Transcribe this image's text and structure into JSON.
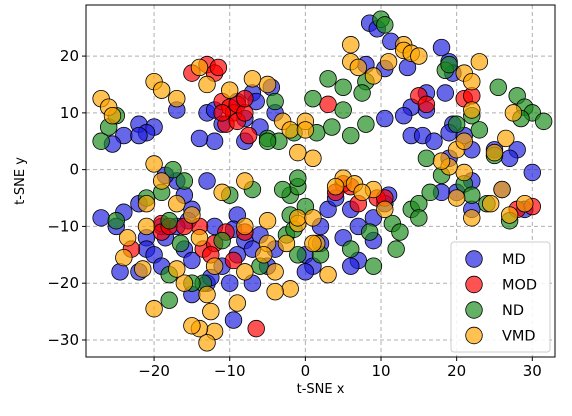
{
  "chart_data": {
    "type": "scatter",
    "xlabel": "t-SNE x",
    "ylabel": "t-SNE y",
    "xlim": [
      -29,
      33
    ],
    "ylim": [
      -33,
      29
    ],
    "xticks": [
      -20,
      -10,
      0,
      10,
      20,
      30
    ],
    "yticks": [
      -30,
      -20,
      -10,
      0,
      10,
      20
    ],
    "x_tick_labels": [
      "−20",
      "−10",
      "0",
      "10",
      "20",
      "30"
    ],
    "y_tick_labels": [
      "−30",
      "−20",
      "−10",
      "0",
      "10",
      "20"
    ],
    "grid": true,
    "legend_position": "lower-right",
    "series": [
      {
        "name": "MD",
        "color": "#1f1fe0",
        "points": [
          [
            8.5,
            25.8
          ],
          [
            9.5,
            24.8
          ],
          [
            11.3,
            22.6
          ],
          [
            8,
            18.5
          ],
          [
            10.5,
            17.8
          ],
          [
            13.5,
            18
          ],
          [
            18,
            21.5
          ],
          [
            19,
            19
          ],
          [
            19.5,
            17
          ],
          [
            16,
            13.5
          ],
          [
            18.5,
            13.5
          ],
          [
            16,
            10.5
          ],
          [
            14,
            11
          ],
          [
            13,
            9.5
          ],
          [
            10.5,
            9
          ],
          [
            14,
            6
          ],
          [
            15.5,
            6
          ],
          [
            17,
            5
          ],
          [
            19.5,
            8
          ],
          [
            19,
            6.5
          ],
          [
            21,
            6
          ],
          [
            22,
            3.5
          ],
          [
            19,
            2
          ],
          [
            22,
            -2
          ],
          [
            20,
            -4
          ],
          [
            18,
            -4
          ],
          [
            22,
            -7
          ],
          [
            26,
            -3.5
          ],
          [
            29,
            -7
          ],
          [
            30,
            -0.5
          ],
          [
            28,
            3.5
          ],
          [
            27,
            2
          ],
          [
            -22,
            8
          ],
          [
            -20,
            7.5
          ],
          [
            -24,
            6
          ],
          [
            -25.5,
            4.5
          ],
          [
            -21,
            6.5
          ],
          [
            -22,
            6
          ],
          [
            -17,
            10.5
          ],
          [
            -13,
            10
          ],
          [
            -12,
            10.5
          ],
          [
            -11,
            8
          ],
          [
            -8,
            9
          ],
          [
            -6,
            7.5
          ],
          [
            -8,
            5
          ],
          [
            -9,
            12
          ],
          [
            -12,
            5
          ],
          [
            -14,
            5.5
          ],
          [
            -7,
            13.5
          ],
          [
            -4.5,
            14.5
          ],
          [
            -4,
            10
          ],
          [
            -6.5,
            12
          ],
          [
            -4,
            -14
          ],
          [
            -22,
            -6
          ],
          [
            -24,
            -7.5
          ],
          [
            -25,
            -10
          ],
          [
            -27,
            -8.5
          ],
          [
            -21,
            -12
          ],
          [
            -21,
            -14
          ],
          [
            -20,
            -15
          ],
          [
            -18.5,
            -12
          ],
          [
            -16,
            -14
          ],
          [
            -15,
            -16
          ],
          [
            -13,
            -20
          ],
          [
            -15,
            -22
          ],
          [
            -19,
            -17
          ],
          [
            -22,
            -18
          ],
          [
            -24.5,
            -18
          ],
          [
            -9,
            -8
          ],
          [
            -12,
            -10
          ],
          [
            -9.5,
            -10.5
          ],
          [
            -8,
            -12.5
          ],
          [
            -6,
            -11.5
          ],
          [
            -7,
            -14
          ],
          [
            -9,
            -15
          ],
          [
            -11,
            -17
          ],
          [
            -12.5,
            -19
          ],
          [
            -10,
            -20
          ],
          [
            -7,
            -20
          ],
          [
            -5,
            -17
          ],
          [
            -15,
            -7
          ],
          [
            -15.5,
            -9
          ],
          [
            -17,
            -10
          ],
          [
            -16,
            -4.5
          ],
          [
            -13,
            -2
          ],
          [
            -17,
            -2
          ],
          [
            -18.5,
            -1
          ],
          [
            0,
            -15
          ],
          [
            1,
            -17
          ],
          [
            0,
            -18
          ],
          [
            2,
            -13
          ],
          [
            2,
            -10
          ],
          [
            3,
            -7
          ],
          [
            4,
            -5
          ],
          [
            6,
            -7
          ],
          [
            7,
            -10
          ],
          [
            5,
            -12
          ],
          [
            7,
            -16
          ],
          [
            6,
            -17
          ],
          [
            9,
            -8.5
          ],
          [
            9,
            -12.5
          ],
          [
            11,
            -4.5
          ],
          [
            10.5,
            -6
          ],
          [
            -9.5,
            -26.5
          ],
          [
            -19,
            -10
          ],
          [
            25,
            3.5
          ]
        ]
      },
      {
        "name": "MOD",
        "color": "#ff0000",
        "points": [
          [
            -13,
            18.5
          ],
          [
            -12,
            17
          ],
          [
            -11.5,
            18
          ],
          [
            -15,
            17
          ],
          [
            -11,
            12
          ],
          [
            -10,
            11
          ],
          [
            -9.5,
            10
          ],
          [
            -9,
            11.5
          ],
          [
            -10.5,
            8
          ],
          [
            -9,
            8.5
          ],
          [
            -8,
            10
          ],
          [
            -11,
            10
          ],
          [
            -7.5,
            6
          ],
          [
            -8,
            12.5
          ],
          [
            -19,
            -9.5
          ],
          [
            -19,
            -11
          ],
          [
            -18,
            -10
          ],
          [
            -14,
            -10
          ],
          [
            -13.5,
            -14
          ],
          [
            -12,
            -13
          ],
          [
            -12.5,
            -15
          ],
          [
            -9.5,
            -16
          ],
          [
            -8,
            -11
          ],
          [
            -6.5,
            -28
          ],
          [
            3,
            11.5
          ],
          [
            5,
            -2.5
          ],
          [
            4,
            -4
          ],
          [
            6,
            -3
          ],
          [
            7,
            -6
          ],
          [
            9.5,
            -5
          ],
          [
            10.5,
            -5
          ],
          [
            15,
            13
          ],
          [
            16,
            11.5
          ],
          [
            21,
            12.5
          ],
          [
            22,
            13
          ],
          [
            28,
            -7
          ],
          [
            30,
            -6.5
          ],
          [
            -23,
            -14
          ],
          [
            -16,
            -10
          ],
          [
            -10.5,
            -11
          ]
        ]
      },
      {
        "name": "ND",
        "color": "#1a8a1a",
        "points": [
          [
            10,
            26.5
          ],
          [
            10.5,
            25.5
          ],
          [
            5,
            14.5
          ],
          [
            3,
            16
          ],
          [
            1,
            12.5
          ],
          [
            -4,
            12
          ],
          [
            -5,
            5.5
          ],
          [
            -3.5,
            5
          ],
          [
            -1.5,
            6.5
          ],
          [
            1.5,
            6.5
          ],
          [
            3.5,
            7.5
          ],
          [
            6,
            6
          ],
          [
            8,
            8
          ],
          [
            5,
            10.5
          ],
          [
            8,
            15.5
          ],
          [
            7.5,
            13.5
          ],
          [
            11.5,
            -9.5
          ],
          [
            12.5,
            -11
          ],
          [
            14,
            -7
          ],
          [
            15,
            -6
          ],
          [
            16.5,
            -4
          ],
          [
            18,
            -1
          ],
          [
            16,
            2
          ],
          [
            15,
            -8.5
          ],
          [
            12,
            -14
          ],
          [
            9,
            -17
          ],
          [
            8.5,
            -11
          ],
          [
            6,
            -14
          ],
          [
            2,
            -15
          ],
          [
            -1,
            -15
          ],
          [
            0,
            -6.5
          ],
          [
            -2,
            -8
          ],
          [
            -2,
            -4.5
          ],
          [
            -1,
            -3
          ],
          [
            -1,
            -1.5
          ],
          [
            -7,
            -3.5
          ],
          [
            -2.5,
            -11.5
          ],
          [
            -6,
            -17
          ],
          [
            -16.5,
            -13
          ],
          [
            -18,
            -18.5
          ],
          [
            -18,
            -23
          ],
          [
            -13.5,
            -20
          ],
          [
            -11,
            -12.5
          ],
          [
            -15,
            -20
          ],
          [
            -16,
            -2
          ],
          [
            -17.5,
            0
          ],
          [
            -19,
            -4
          ],
          [
            -21,
            -5
          ],
          [
            -25,
            -9
          ],
          [
            -27,
            5
          ],
          [
            -26,
            7.5
          ],
          [
            -25,
            9.5
          ],
          [
            -5,
            5
          ],
          [
            -10,
            -4.5
          ],
          [
            -3,
            -3.5
          ],
          [
            18.5,
            17.5
          ],
          [
            19,
            18.5
          ],
          [
            20,
            8
          ],
          [
            22,
            9.5
          ],
          [
            23,
            7
          ],
          [
            21,
            -2.5
          ],
          [
            22,
            -4.5
          ],
          [
            24,
            -6
          ],
          [
            27,
            -9
          ],
          [
            25.5,
            14.5
          ],
          [
            28,
            13
          ],
          [
            29,
            11
          ],
          [
            30,
            10
          ],
          [
            31.5,
            8.5
          ],
          [
            28.5,
            9
          ],
          [
            25,
            2.5
          ],
          [
            -1.5,
            -10.5
          ],
          [
            -18,
            -9
          ]
        ]
      },
      {
        "name": "VMD",
        "color": "#ffa500",
        "points": [
          [
            -27,
            12.5
          ],
          [
            -26,
            11
          ],
          [
            -25.5,
            9.5
          ],
          [
            -20,
            15.5
          ],
          [
            -19,
            14
          ],
          [
            -17,
            12.5
          ],
          [
            -14,
            18
          ],
          [
            -13,
            15
          ],
          [
            -10,
            14
          ],
          [
            -5,
            15
          ],
          [
            -7,
            16
          ],
          [
            -3,
            8.5
          ],
          [
            -2,
            7
          ],
          [
            0,
            8.5
          ],
          [
            0,
            7
          ],
          [
            6,
            22
          ],
          [
            6,
            19
          ],
          [
            7,
            18
          ],
          [
            9,
            16.5
          ],
          [
            11,
            19
          ],
          [
            13,
            22
          ],
          [
            13,
            21
          ],
          [
            14,
            20.5
          ],
          [
            15,
            20
          ],
          [
            21,
            17
          ],
          [
            22,
            15.5
          ],
          [
            23,
            19
          ],
          [
            22,
            10.5
          ],
          [
            27.5,
            10
          ],
          [
            26.5,
            5.5
          ],
          [
            25,
            3
          ],
          [
            21,
            -0.5
          ],
          [
            19,
            0.5
          ],
          [
            18,
            1.5
          ],
          [
            20,
            3.5
          ],
          [
            21,
            5
          ],
          [
            20,
            -5
          ],
          [
            22,
            -8.5
          ],
          [
            24.5,
            -6
          ],
          [
            26,
            -3.5
          ],
          [
            27,
            -8
          ],
          [
            29,
            -6
          ],
          [
            5,
            -1.5
          ],
          [
            4,
            -3
          ],
          [
            6.5,
            -2.5
          ],
          [
            9,
            -3.5
          ],
          [
            10.5,
            -7
          ],
          [
            7.5,
            -4
          ],
          [
            3,
            -18.5
          ],
          [
            1.5,
            -13
          ],
          [
            -1,
            -9.5
          ],
          [
            -1,
            -8.5
          ],
          [
            1,
            -8.5
          ],
          [
            -2,
            -21
          ],
          [
            -4,
            -21.5
          ],
          [
            -2.5,
            -13
          ],
          [
            -5,
            -9
          ],
          [
            -5,
            -13
          ],
          [
            -4,
            -18
          ],
          [
            -5.5,
            -15
          ],
          [
            -8,
            -10
          ],
          [
            -8,
            -18
          ],
          [
            -9,
            -23.5
          ],
          [
            -13,
            -22
          ],
          [
            -12,
            -28.5
          ],
          [
            -14,
            -28
          ],
          [
            -15,
            -27.5
          ],
          [
            -16,
            -20
          ],
          [
            -17,
            -17.5
          ],
          [
            -14,
            -12
          ],
          [
            -12,
            -17
          ],
          [
            -21,
            -6
          ],
          [
            -21,
            -10
          ],
          [
            -20,
            -24.5
          ],
          [
            -21.5,
            -17.5
          ],
          [
            -24,
            -15.5
          ],
          [
            -23.5,
            -12
          ],
          [
            -20,
            1
          ],
          [
            -19,
            -2
          ],
          [
            -17,
            -6
          ],
          [
            -15,
            -8
          ],
          [
            -11,
            -4
          ],
          [
            -8,
            -2
          ],
          [
            -13,
            -30.5
          ],
          [
            -12.5,
            -25
          ],
          [
            1,
            2
          ],
          [
            -1,
            3
          ],
          [
            1,
            -13
          ]
        ]
      }
    ]
  }
}
